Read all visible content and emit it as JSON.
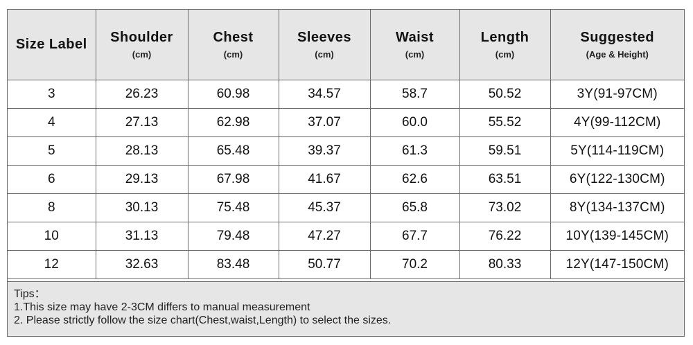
{
  "headers": [
    {
      "name": "Size Label",
      "unit": ""
    },
    {
      "name": "Shoulder",
      "unit": "(cm)"
    },
    {
      "name": "Chest",
      "unit": "(cm)"
    },
    {
      "name": "Sleeves",
      "unit": "(cm)"
    },
    {
      "name": "Waist",
      "unit": "(cm)"
    },
    {
      "name": "Length",
      "unit": "(cm)"
    },
    {
      "name": "Suggested",
      "unit": "(Age & Height)"
    }
  ],
  "rows": [
    [
      "3",
      "26.23",
      "60.98",
      "34.57",
      "58.7",
      "50.52",
      "3Y(91-97CM)"
    ],
    [
      "4",
      "27.13",
      "62.98",
      "37.07",
      "60.0",
      "55.52",
      "4Y(99-112CM)"
    ],
    [
      "5",
      "28.13",
      "65.48",
      "39.37",
      "61.3",
      "59.51",
      "5Y(114-119CM)"
    ],
    [
      "6",
      "29.13",
      "67.98",
      "41.67",
      "62.6",
      "63.51",
      "6Y(122-130CM)"
    ],
    [
      "8",
      "30.13",
      "75.48",
      "45.37",
      "65.8",
      "73.02",
      "8Y(134-137CM)"
    ],
    [
      "10",
      "31.13",
      "79.48",
      "47.27",
      "67.7",
      "76.22",
      "10Y(139-145CM)"
    ],
    [
      "12",
      "32.63",
      "83.48",
      "50.77",
      "70.2",
      "80.33",
      "12Y(147-150CM)"
    ]
  ],
  "tips": {
    "title": "Tips：",
    "line1": "1.This size may have 2-3CM differs to manual measurement",
    "line2": "2. Please strictly follow the size chart(Chest,waist,Length) to select the sizes."
  }
}
